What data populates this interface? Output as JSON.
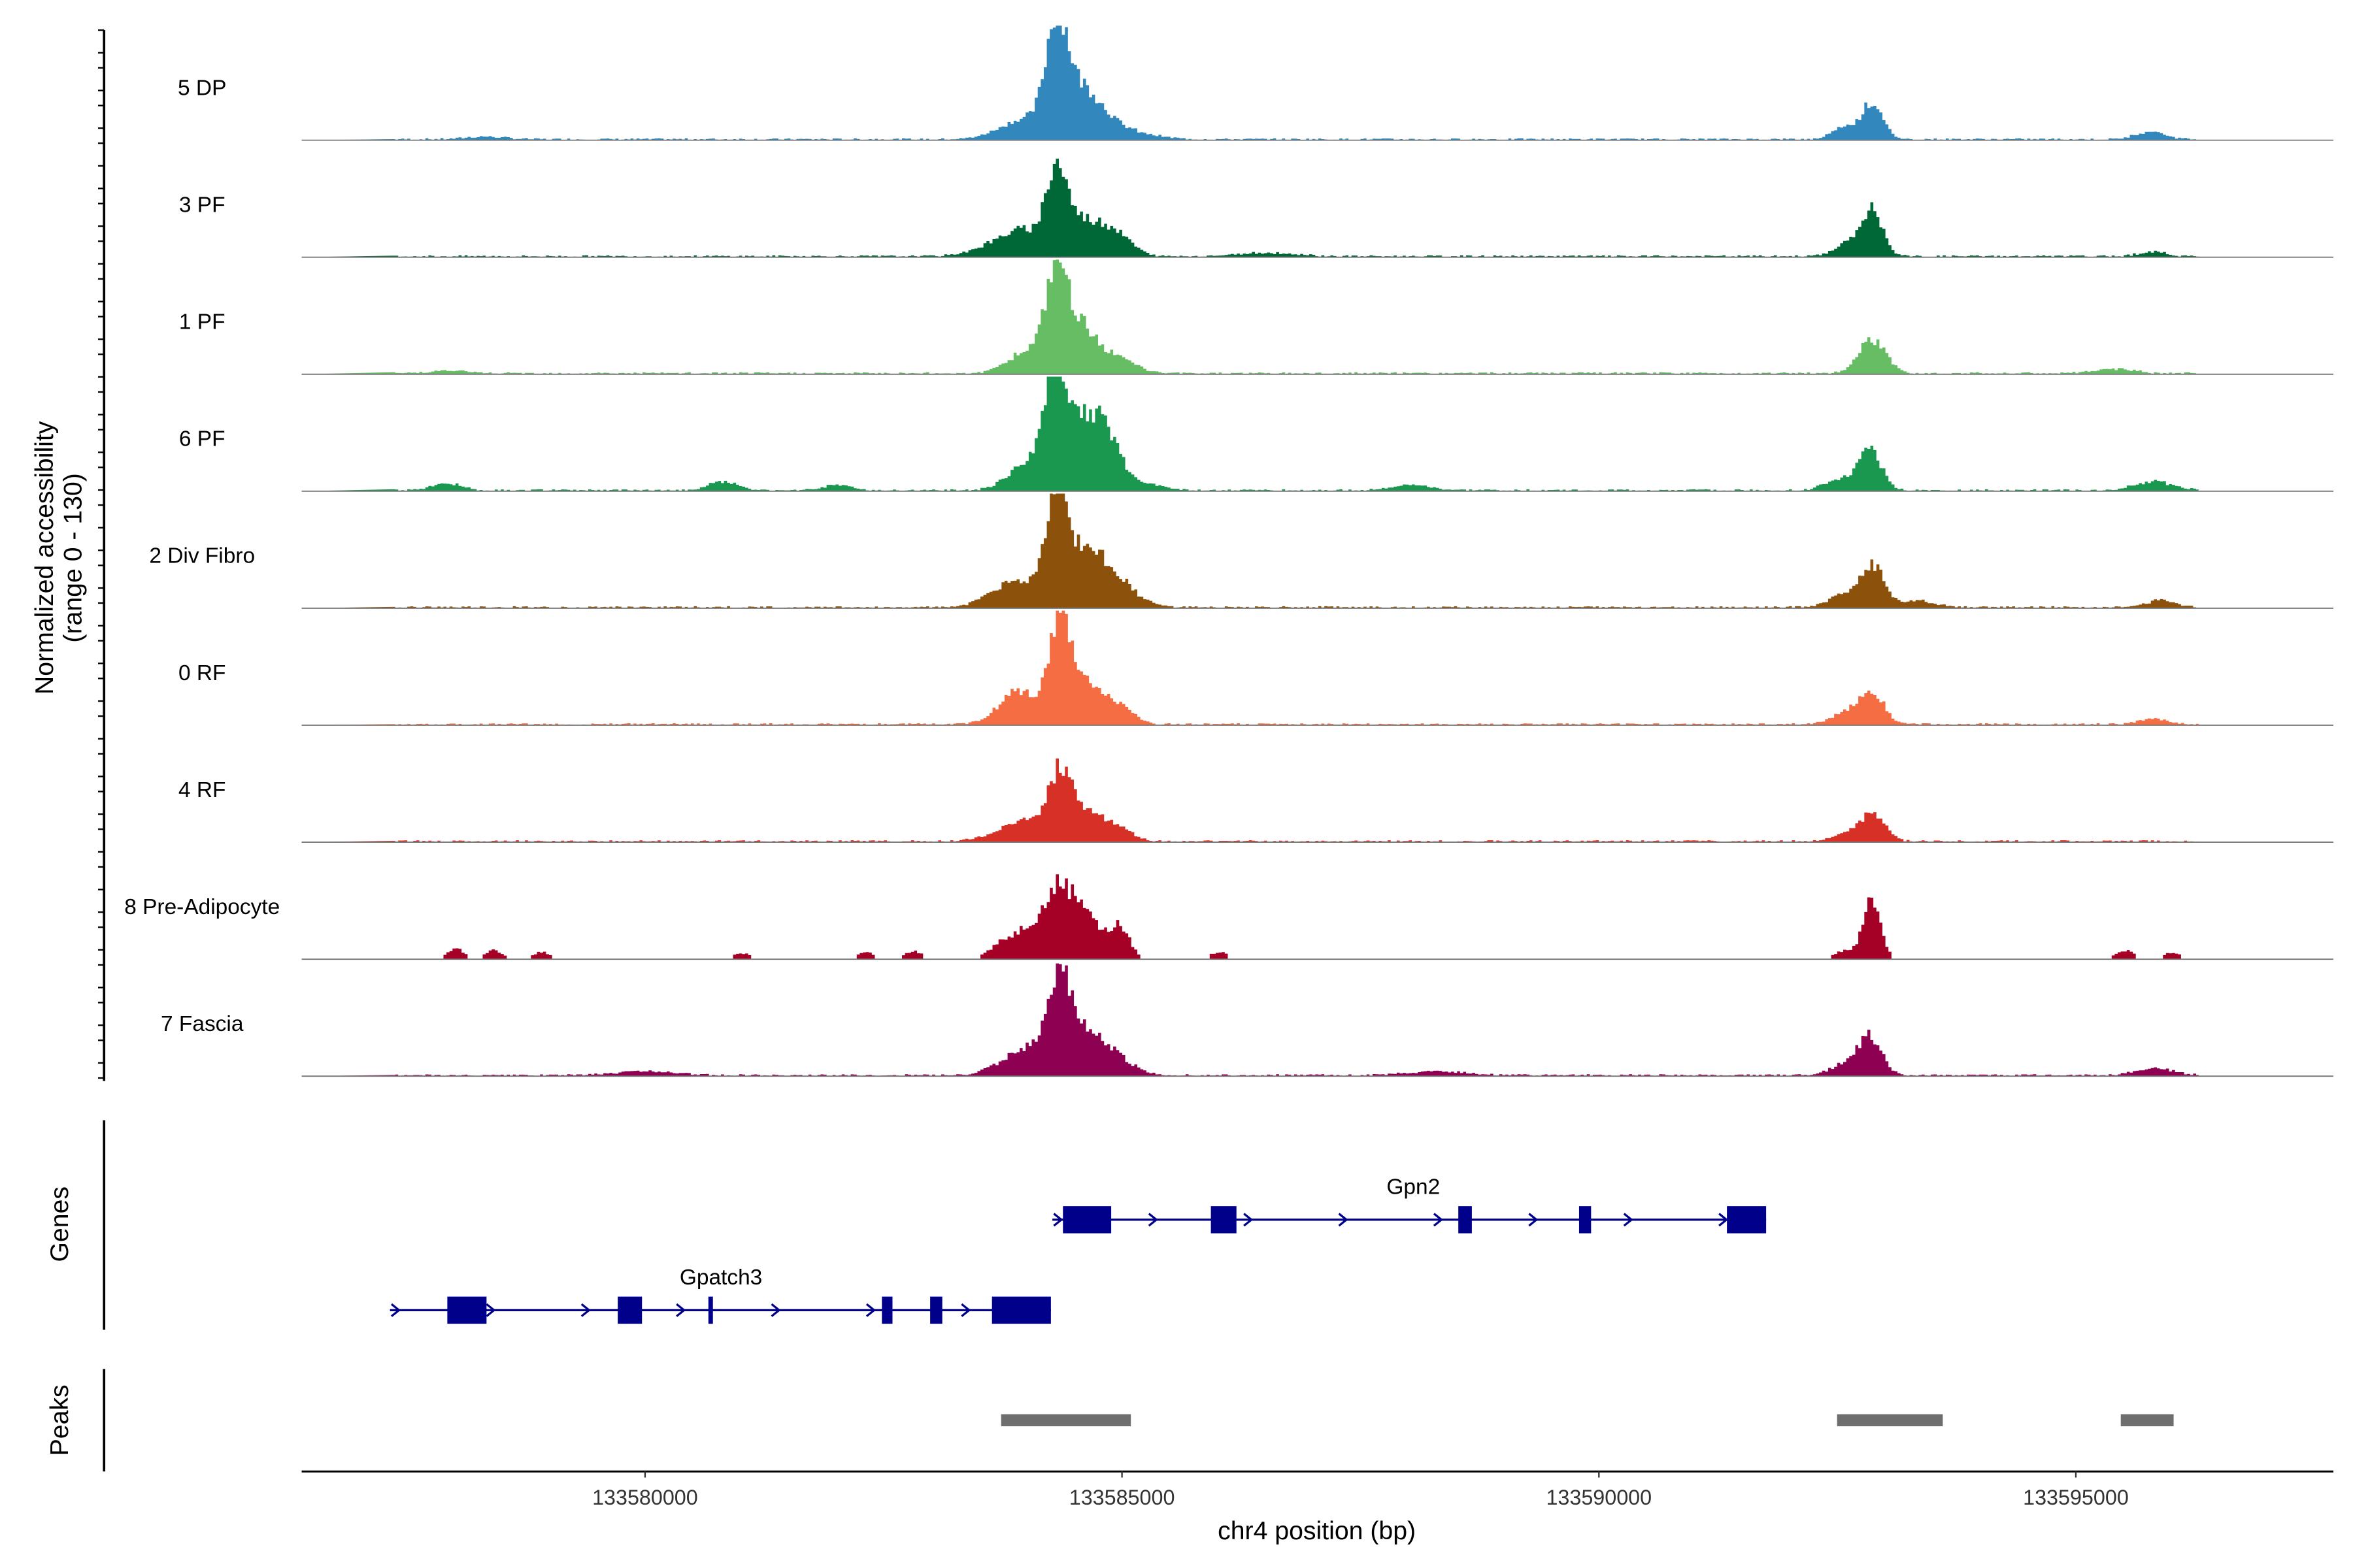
{
  "chart_data": {
    "type": "area",
    "title": "",
    "ylabel": "Normalized accessibility\n(range 0 - 130)",
    "ylabel_lines": [
      "Normalized accessibility",
      "(range 0 - 130)"
    ],
    "xlabel": "chr4 position (bp)",
    "chromosome": "chr4",
    "xlim": [
      133576400,
      133597700
    ],
    "ylim": [
      0,
      130
    ],
    "x_ticks": [
      133580000,
      133585000,
      133590000,
      133595000
    ],
    "x_tick_labels": [
      "133580000",
      "133585000",
      "133590000",
      "133595000"
    ],
    "tracks": [
      {
        "name": "5 DP",
        "color": "#3288bd",
        "peaks": [
          [
            133583950,
            22,
            250
          ],
          [
            133584300,
            112,
            110
          ],
          [
            133584550,
            55,
            220
          ],
          [
            133584950,
            10,
            300
          ],
          [
            133592550,
            14,
            120
          ],
          [
            133592850,
            42,
            110
          ],
          [
            133595770,
            9,
            150
          ],
          [
            133578300,
            3,
            200
          ]
        ]
      },
      {
        "name": "3 PF",
        "color": "#006837",
        "peaks": [
          [
            133583700,
            14,
            250
          ],
          [
            133584000,
            22,
            200
          ],
          [
            133584300,
            86,
            110
          ],
          [
            133584600,
            40,
            200
          ],
          [
            133584950,
            22,
            150
          ],
          [
            133592600,
            14,
            150
          ],
          [
            133592850,
            50,
            110
          ],
          [
            133595780,
            5,
            150
          ],
          [
            133586500,
            4,
            300
          ]
        ]
      },
      {
        "name": "1 PF",
        "color": "#66bd63",
        "peaks": [
          [
            133584000,
            26,
            200
          ],
          [
            133584300,
            102,
            110
          ],
          [
            133584550,
            52,
            180
          ],
          [
            133584950,
            15,
            180
          ],
          [
            133592850,
            38,
            140
          ],
          [
            133595400,
            5,
            200
          ],
          [
            133577900,
            3,
            200
          ]
        ]
      },
      {
        "name": "6 PF",
        "color": "#1a9850",
        "peaks": [
          [
            133584000,
            30,
            200
          ],
          [
            133584280,
            112,
            110
          ],
          [
            133584550,
            75,
            200
          ],
          [
            133584820,
            45,
            150
          ],
          [
            133585200,
            8,
            200
          ],
          [
            133592500,
            12,
            150
          ],
          [
            133592830,
            44,
            120
          ],
          [
            133595800,
            10,
            200
          ],
          [
            133577900,
            8,
            150
          ],
          [
            133580800,
            10,
            150
          ],
          [
            133582000,
            6,
            150
          ],
          [
            133588000,
            6,
            200
          ]
        ]
      },
      {
        "name": "2 Div Fibro",
        "color": "#8c510a",
        "peaks": [
          [
            133583700,
            16,
            200
          ],
          [
            133584000,
            22,
            200
          ],
          [
            133584300,
            110,
            110
          ],
          [
            133584600,
            60,
            220
          ],
          [
            133584950,
            22,
            200
          ],
          [
            133592550,
            14,
            150
          ],
          [
            133592850,
            46,
            120
          ],
          [
            133593300,
            8,
            200
          ],
          [
            133595880,
            8,
            150
          ]
        ]
      },
      {
        "name": "0 RF",
        "color": "#f46d43",
        "peaks": [
          [
            133583900,
            38,
            200
          ],
          [
            133584330,
            100,
            110
          ],
          [
            133584580,
            46,
            180
          ],
          [
            133584950,
            20,
            150
          ],
          [
            133592580,
            14,
            150
          ],
          [
            133592850,
            36,
            120
          ],
          [
            133595800,
            6,
            150
          ]
        ]
      },
      {
        "name": "4 RF",
        "color": "#d73027",
        "peaks": [
          [
            133583700,
            8,
            200
          ],
          [
            133584000,
            22,
            180
          ],
          [
            133584330,
            68,
            120
          ],
          [
            133584600,
            30,
            200
          ],
          [
            133584950,
            12,
            150
          ],
          [
            133592850,
            32,
            130
          ],
          [
            133592550,
            8,
            120
          ]
        ]
      },
      {
        "name": "8 Pre-Adipocyte",
        "color": "#a50026",
        "peaks": [
          [
            133583750,
            18,
            150
          ],
          [
            133584050,
            35,
            150
          ],
          [
            133584330,
            75,
            130
          ],
          [
            133584600,
            55,
            130
          ],
          [
            133584950,
            38,
            110
          ],
          [
            133592580,
            10,
            120
          ],
          [
            133592850,
            68,
            90
          ],
          [
            133578000,
            12,
            90
          ],
          [
            133578400,
            10,
            90
          ],
          [
            133578900,
            8,
            90
          ],
          [
            133581000,
            7,
            90
          ],
          [
            133582300,
            8,
            90
          ],
          [
            133582800,
            9,
            90
          ],
          [
            133586000,
            8,
            90
          ],
          [
            133595500,
            10,
            90
          ],
          [
            133596000,
            8,
            90
          ]
        ]
      },
      {
        "name": "7 Fascia",
        "color": "#8e0152",
        "peaks": [
          [
            133583800,
            14,
            200
          ],
          [
            133584050,
            22,
            180
          ],
          [
            133584330,
            95,
            120
          ],
          [
            133584600,
            45,
            200
          ],
          [
            133584950,
            16,
            180
          ],
          [
            133592560,
            12,
            150
          ],
          [
            133592830,
            44,
            120
          ],
          [
            133595800,
            8,
            200
          ],
          [
            133580000,
            5,
            300
          ],
          [
            133588300,
            5,
            300
          ]
        ]
      }
    ],
    "genes_label": "Genes",
    "genes": [
      {
        "name": "Gpn2",
        "strand": "+",
        "start": 133584270,
        "end": 133591753,
        "row": 0,
        "exons": [
          [
            133584381,
            133584887
          ],
          [
            133585932,
            133586200
          ],
          [
            133588526,
            133588668
          ],
          [
            133589792,
            133589918
          ],
          [
            133591342,
            133591753
          ]
        ]
      },
      {
        "name": "Gpatch3",
        "strand": "+",
        "start": 133577326,
        "end": 133584255,
        "row": 1,
        "exons": [
          [
            133577927,
            133578338
          ],
          [
            133579714,
            133579968
          ],
          [
            133580664,
            133580711
          ],
          [
            133582483,
            133582594
          ],
          [
            133582989,
            133583116
          ],
          [
            133583637,
            133584255
          ]
        ]
      }
    ],
    "gene_color": "#00008b",
    "peaks_label": "Peaks",
    "peaks_color": "#6e6e6e",
    "peak_regions": [
      [
        133583733,
        133585093
      ],
      [
        133592497,
        133593605
      ],
      [
        133595471,
        133596025
      ]
    ]
  }
}
